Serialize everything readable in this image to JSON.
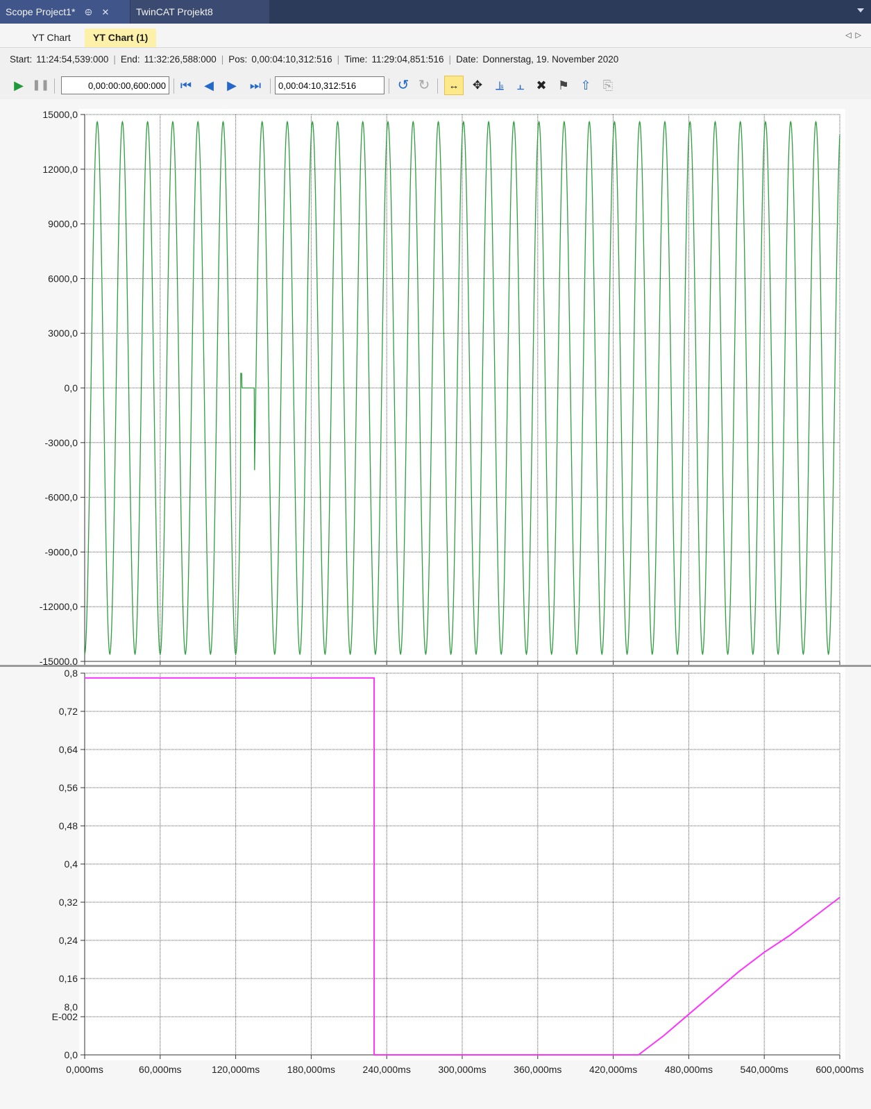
{
  "doc_tabs": [
    {
      "label": "Scope Project1*",
      "active": true
    },
    {
      "label": "TwinCAT Projekt8",
      "active": false
    }
  ],
  "view_tabs": [
    {
      "label": "YT Chart",
      "selected": false
    },
    {
      "label": "YT Chart (1)",
      "selected": true
    }
  ],
  "info": {
    "start_label": "Start:",
    "start": "11:24:54,539:000",
    "end_label": "End:",
    "end": "11:32:26,588:000",
    "pos_label": "Pos:",
    "pos": "0,00:04:10,312:516",
    "time_label": "Time:",
    "time": "11:29:04,851:516",
    "date_label": "Date:",
    "date": "Donnerstag, 19. November 2020"
  },
  "toolbar": {
    "interval_value": "0,00:00:00,600:000",
    "position_value": "0,00:04:10,312:516"
  },
  "icons": [
    "play-icon",
    "pause-icon",
    "first-icon",
    "prev-icon",
    "next-icon",
    "last-icon",
    "undo-icon",
    "redo-icon",
    "pan-x-icon",
    "pan-xy-icon",
    "zoom-y-icon",
    "zoom-y2-icon",
    "cursor-off-icon",
    "reset-axis-icon",
    "export-icon",
    "trigger-icon"
  ],
  "colors": {
    "series1": "#2e9e3e",
    "series2": "#ff33ff",
    "grid": "#444444"
  },
  "chart_data": [
    {
      "type": "line",
      "title": "",
      "x_unit": "ms",
      "xlim": [
        0,
        600
      ],
      "ylim": [
        -15000,
        15000
      ],
      "y_ticks": [
        "15000,0",
        "12000,0",
        "9000,0",
        "6000,0",
        "3000,0",
        "0,0",
        "-3000,0",
        "-6000,0",
        "-9000,0",
        "-12000,0",
        "-15000,0"
      ],
      "y_tick_values": [
        15000,
        12000,
        9000,
        6000,
        3000,
        0,
        -3000,
        -6000,
        -9000,
        -12000,
        -15000
      ],
      "grid": true,
      "series": [
        {
          "color": "#2e9e3e",
          "waveform": "sine",
          "amplitude": 14600,
          "period_ms": 20,
          "flat_segment_ms": [
            124,
            135
          ],
          "flat_value": 0,
          "spike_value": 800
        }
      ]
    },
    {
      "type": "line",
      "title": "",
      "x_unit": "ms",
      "xlim": [
        0,
        600
      ],
      "ylim": [
        0,
        0.8
      ],
      "y_ticks": [
        "0,8",
        "0,72",
        "0,64",
        "0,56",
        "0,48",
        "0,4",
        "0,32",
        "0,24",
        "0,16",
        "8,0\nE-002",
        "0,0"
      ],
      "y_tick_values": [
        0.8,
        0.72,
        0.64,
        0.56,
        0.48,
        0.4,
        0.32,
        0.24,
        0.16,
        0.08,
        0
      ],
      "x_ticks": [
        "0,000ms",
        "60,000ms",
        "120,000ms",
        "180,000ms",
        "240,000ms",
        "300,000ms",
        "360,000ms",
        "420,000ms",
        "480,000ms",
        "540,000ms",
        "600,000ms"
      ],
      "x_tick_values": [
        0,
        60,
        120,
        180,
        240,
        300,
        360,
        420,
        480,
        540,
        600
      ],
      "grid": true,
      "series": [
        {
          "color": "#ff33ff",
          "x": [
            0,
            230,
            230,
            440,
            460,
            480,
            500,
            520,
            540,
            560,
            580,
            600
          ],
          "y": [
            0.79,
            0.79,
            0,
            0,
            0.04,
            0.085,
            0.13,
            0.175,
            0.215,
            0.25,
            0.29,
            0.33
          ]
        }
      ]
    }
  ]
}
